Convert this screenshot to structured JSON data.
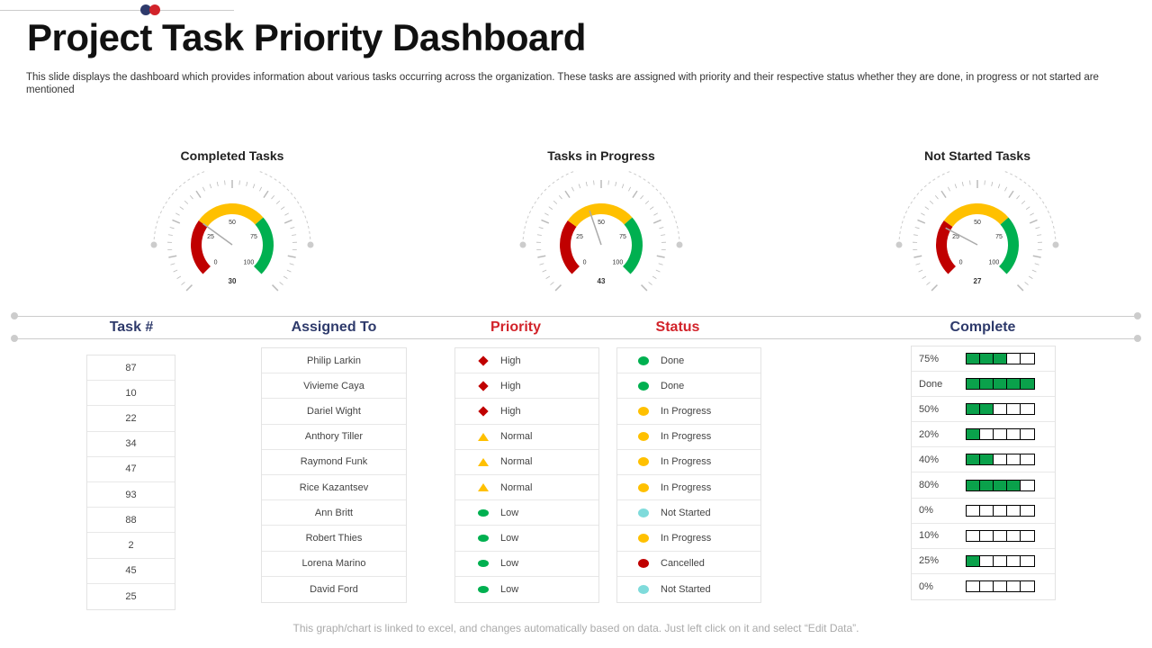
{
  "title": "Project Task Priority Dashboard",
  "description": "This slide displays the dashboard which provides information about various tasks occurring across the organization. These tasks are assigned with priority and their respective status whether  they are done,  in progress or not started are mentioned",
  "colors": {
    "red": "#c00000",
    "yellow": "#ffc000",
    "green": "#00b050",
    "cyan": "#7fdbdb",
    "navy": "#2e3a6b",
    "accent_red": "#d2232a"
  },
  "gauges": [
    {
      "title": "Completed Tasks",
      "value": 30,
      "ticks": [
        "0",
        "25",
        "50",
        "75",
        "100"
      ]
    },
    {
      "title": "Tasks in Progress",
      "value": 43,
      "ticks": [
        "0",
        "25",
        "50",
        "75",
        "100"
      ]
    },
    {
      "title": "Not Started Tasks",
      "value": 27,
      "ticks": [
        "0",
        "25",
        "50",
        "75",
        "100"
      ]
    }
  ],
  "table": {
    "headers": {
      "task": "Task  #",
      "assigned": "Assigned To",
      "priority": "Priority",
      "status": "Status",
      "complete": "Complete"
    },
    "rows": [
      {
        "task": "87",
        "assigned": "Philip  Larkin",
        "priority": "High",
        "status": "Done",
        "complete": "75%",
        "fill": 3
      },
      {
        "task": "10",
        "assigned": "Vivieme Caya",
        "priority": "High",
        "status": "Done",
        "complete": "Done",
        "fill": 5
      },
      {
        "task": "22",
        "assigned": "Dariel Wight",
        "priority": "High",
        "status": "In Progress",
        "complete": "50%",
        "fill": 2
      },
      {
        "task": "34",
        "assigned": "Anthory Tiller",
        "priority": "Normal",
        "status": "In Progress",
        "complete": "20%",
        "fill": 1
      },
      {
        "task": "47",
        "assigned": "Raymond Funk",
        "priority": "Normal",
        "status": "In Progress",
        "complete": "40%",
        "fill": 2
      },
      {
        "task": "93",
        "assigned": "Rice Kazantsev",
        "priority": "Normal",
        "status": "In Progress",
        "complete": "80%",
        "fill": 4
      },
      {
        "task": "88",
        "assigned": "Ann Britt",
        "priority": "Low",
        "status": "Not Started",
        "complete": "0%",
        "fill": 0
      },
      {
        "task": "2",
        "assigned": "Robert Thies",
        "priority": "Low",
        "status": "In Progress",
        "complete": "10%",
        "fill": 0
      },
      {
        "task": "45",
        "assigned": "Lorena Marino",
        "priority": "Low",
        "status": "Cancelled",
        "complete": "25%",
        "fill": 1
      },
      {
        "task": "25",
        "assigned": "David Ford",
        "priority": "Low",
        "status": "Not Started",
        "complete": "0%",
        "fill": 0
      }
    ]
  },
  "footer": "This graph/chart is linked to excel,  and changes automatically based on data. Just left click on it and select “Edit Data”."
}
